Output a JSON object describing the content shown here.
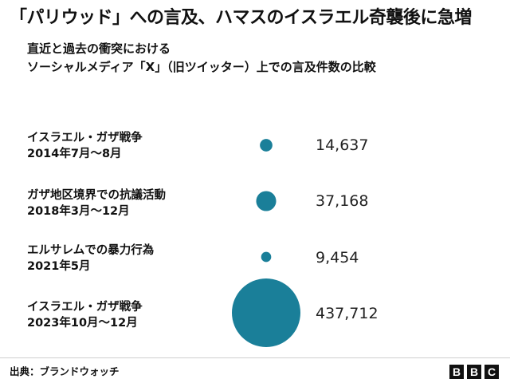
{
  "header": {
    "title": "「パリウッド」への言及、ハマスのイスラエル奇襲後に急増",
    "subtitle_lines": [
      "直近と過去の衝突における",
      "ソーシャルメディア「X」（旧ツイッター）上での言及件数の比較"
    ]
  },
  "chart_data": {
    "type": "bubble",
    "title": "「パリウッド」への言及、ハマスのイスラエル奇襲後に急増",
    "subtitle": "直近と過去の衝突における ソーシャルメディア「X」（旧ツイッター）上での言及件数の比較",
    "bubble_color": "#1a7f99",
    "rows": [
      {
        "event": "イスラエル・ガザ戦争",
        "period": "2014年7月～8月",
        "value": 14637,
        "value_label": "14,637"
      },
      {
        "event": "ガザ地区境界での抗議活動",
        "period": "2018年3月～12月",
        "value": 37168,
        "value_label": "37,168"
      },
      {
        "event": "エルサレムでの暴力行為",
        "period": "2021年5月",
        "value": 9454,
        "value_label": "9,454"
      },
      {
        "event": "イスラエル・ガザ戦争",
        "period": "2023年10月～12月",
        "value": 437712,
        "value_label": "437,712"
      }
    ]
  },
  "footer": {
    "source": "出典：ブランドウォッチ",
    "logo_letters": [
      "B",
      "B",
      "C"
    ]
  }
}
